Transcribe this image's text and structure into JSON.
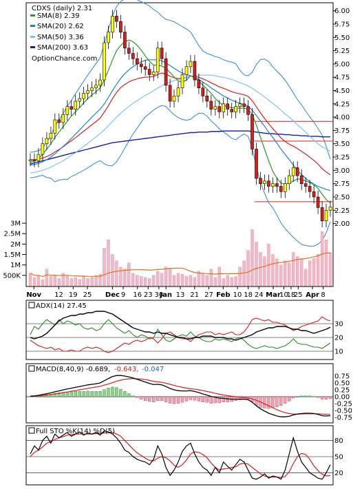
{
  "legend": {
    "ticker": "CDXS (daily) 2.31",
    "sma8": "SMA(8) 2.39",
    "sma20": "SMA(20) 2.62",
    "sma50": "SMA(50) 3.36",
    "sma200": "SMA(200) 3.63",
    "site": "OptionChance.com"
  },
  "colors": {
    "sma8": "#2a9a2a",
    "sma20": "#1f7fd0",
    "sma50": "#7fc4ea",
    "sma200": "#1a1aa0",
    "upper_band": "#3b8fd8",
    "ema_red": "#d81e1e",
    "candle_up": "#ffff00",
    "candle_down": "#d81e1e",
    "volume_bar": "#f2b8c6",
    "volume_ma": "#e07020"
  },
  "x_labels": [
    "Nov",
    "12",
    "19",
    "25",
    "Dec",
    "9",
    "16",
    "23",
    "30",
    "Jan",
    "13",
    "21",
    "27",
    "Feb",
    "10",
    "18",
    "24",
    "Mar",
    "10",
    "18",
    "25",
    "Apr",
    "8"
  ],
  "adx_panel": {
    "label": "ADX(14) 27.45",
    "ticks": [
      "30",
      "20",
      "10"
    ]
  },
  "macd_panel": {
    "label": "MACD(8,40,9) -0.689,",
    "signal": "-0.643,",
    "hist": "-0.047",
    "ticks": [
      "0.75",
      "0.50",
      "0.25",
      "0.00",
      "-0.25",
      "-0.50",
      "-0.75"
    ]
  },
  "sto_panel": {
    "label": "Full STO %K(14) %D(5)",
    "ticks": [
      "80",
      "50",
      "20"
    ]
  },
  "chart_data": {
    "type": "line",
    "title": "CDXS (daily) 2.31",
    "price_axis": {
      "ticks": [
        "6.00",
        "5.75",
        "5.50",
        "5.25",
        "5.00",
        "4.75",
        "4.50",
        "4.25",
        "4.00",
        "3.75",
        "3.50",
        "3.25",
        "3.00",
        "2.75",
        "2.50",
        "2.25",
        "2.00"
      ],
      "ylim": [
        1.8,
        6.1
      ]
    },
    "volume_axis": {
      "ticks": [
        "3M",
        "2.5M",
        "2M",
        "1.5M",
        "1M",
        "500K"
      ],
      "ylim": [
        0,
        3200000
      ]
    },
    "close": [
      3.2,
      3.18,
      3.3,
      3.5,
      3.6,
      3.7,
      3.95,
      3.9,
      4.05,
      4.2,
      4.15,
      4.3,
      4.35,
      4.45,
      4.5,
      4.55,
      4.6,
      4.7,
      5.4,
      5.6,
      5.9,
      5.8,
      5.6,
      5.3,
      5.2,
      5.1,
      5.0,
      4.95,
      4.9,
      4.8,
      4.85,
      5.3,
      5.1,
      4.6,
      4.3,
      4.4,
      4.55,
      4.8,
      4.95,
      5.05,
      4.7,
      4.55,
      4.4,
      4.3,
      4.15,
      4.2,
      4.1,
      4.25,
      4.15,
      4.1,
      4.2,
      4.25,
      4.2,
      4.05,
      3.4,
      2.85,
      2.75,
      2.8,
      2.7,
      2.75,
      2.7,
      2.6,
      2.75,
      2.9,
      3.05,
      2.9,
      2.75,
      2.7,
      2.6,
      2.5,
      2.3,
      2.05,
      2.25,
      2.31
    ],
    "sma8": [
      3.15,
      3.18,
      3.22,
      3.3,
      3.4,
      3.5,
      3.62,
      3.72,
      3.82,
      3.92,
      4.02,
      4.1,
      4.18,
      4.27,
      4.35,
      4.42,
      4.48,
      4.55,
      4.7,
      4.88,
      5.08,
      5.25,
      5.35,
      5.42,
      5.45,
      5.42,
      5.35,
      5.26,
      5.15,
      5.05,
      4.98,
      4.98,
      4.96,
      4.92,
      4.84,
      4.76,
      4.68,
      4.66,
      4.7,
      4.78,
      4.74,
      4.68,
      4.6,
      4.53,
      4.45,
      4.35,
      4.28,
      4.22,
      4.2,
      4.18,
      4.17,
      4.17,
      4.17,
      4.15,
      4.05,
      3.85,
      3.62,
      3.4,
      3.18,
      2.98,
      2.85,
      2.76,
      2.74,
      2.76,
      2.8,
      2.84,
      2.83,
      2.8,
      2.77,
      2.73,
      2.66,
      2.55,
      2.45,
      2.39
    ],
    "sma20": [
      3.1,
      3.11,
      3.13,
      3.16,
      3.2,
      3.25,
      3.31,
      3.38,
      3.45,
      3.52,
      3.6,
      3.68,
      3.76,
      3.84,
      3.92,
      4.0,
      4.08,
      4.15,
      4.25,
      4.37,
      4.5,
      4.62,
      4.73,
      4.82,
      4.89,
      4.95,
      5.0,
      5.04,
      5.07,
      5.08,
      5.08,
      5.08,
      5.06,
      5.02,
      4.97,
      4.92,
      4.87,
      4.83,
      4.8,
      4.78,
      4.75,
      4.71,
      4.66,
      4.61,
      4.55,
      4.5,
      4.45,
      4.4,
      4.36,
      4.32,
      4.29,
      4.26,
      4.24,
      4.21,
      4.13,
      4.03,
      3.93,
      3.83,
      3.72,
      3.62,
      3.51,
      3.4,
      3.3,
      3.2,
      3.1,
      3.0,
      2.92,
      2.85,
      2.79,
      2.74,
      2.7,
      2.67,
      2.64,
      2.62
    ],
    "sma50": [
      2.95,
      2.96,
      2.98,
      3.0,
      3.03,
      3.06,
      3.1,
      3.14,
      3.18,
      3.23,
      3.28,
      3.33,
      3.39,
      3.45,
      3.51,
      3.57,
      3.63,
      3.69,
      3.76,
      3.84,
      3.92,
      4.0,
      4.07,
      4.14,
      4.2,
      4.26,
      4.31,
      4.36,
      4.41,
      4.45,
      4.5,
      4.55,
      4.59,
      4.63,
      4.66,
      4.69,
      4.71,
      4.73,
      4.75,
      4.77,
      4.78,
      4.79,
      4.79,
      4.79,
      4.79,
      4.78,
      4.76,
      4.75,
      4.73,
      4.71,
      4.68,
      4.65,
      4.62,
      4.59,
      4.54,
      4.49,
      4.44,
      4.38,
      4.32,
      4.26,
      4.2,
      4.13,
      4.06,
      4.0,
      3.93,
      3.86,
      3.79,
      3.72,
      3.64,
      3.57,
      3.5,
      3.44,
      3.4,
      3.36
    ],
    "sma200": [
      3.12,
      3.14,
      3.16,
      3.18,
      3.2,
      3.22,
      3.24,
      3.26,
      3.28,
      3.3,
      3.32,
      3.34,
      3.36,
      3.38,
      3.4,
      3.42,
      3.44,
      3.46,
      3.48,
      3.5,
      3.52,
      3.53,
      3.54,
      3.55,
      3.56,
      3.57,
      3.58,
      3.59,
      3.6,
      3.61,
      3.62,
      3.63,
      3.64,
      3.65,
      3.66,
      3.67,
      3.68,
      3.69,
      3.7,
      3.71,
      3.71,
      3.72,
      3.72,
      3.72,
      3.73,
      3.73,
      3.73,
      3.74,
      3.74,
      3.74,
      3.74,
      3.74,
      3.74,
      3.74,
      3.73,
      3.72,
      3.71,
      3.7,
      3.69,
      3.69,
      3.68,
      3.68,
      3.67,
      3.67,
      3.66,
      3.66,
      3.65,
      3.65,
      3.64,
      3.64,
      3.64,
      3.63,
      3.63,
      3.63
    ],
    "volume": [
      600000,
      400000,
      500000,
      300000,
      800000,
      450000,
      500000,
      350000,
      600000,
      500000,
      350000,
      400000,
      300000,
      450000,
      350000,
      400000,
      500000,
      550000,
      1800000,
      2200000,
      1500000,
      1200000,
      900000,
      800000,
      1100000,
      600000,
      500000,
      450000,
      400000,
      350000,
      500000,
      700000,
      600000,
      900000,
      800000,
      500000,
      600000,
      550000,
      450000,
      500000,
      400000,
      700000,
      600000,
      500000,
      800000,
      400000,
      900000,
      350000,
      500000,
      400000,
      450000,
      900000,
      1200000,
      1700000,
      2700000,
      2100000,
      1600000,
      1400000,
      2000000,
      1500000,
      1300000,
      1000000,
      1200000,
      1100000,
      1600000,
      1400000,
      1300000,
      800000,
      1200000,
      1300000,
      1500000,
      2600000,
      2200000,
      1600000
    ],
    "adx": {
      "ticks": [
        30,
        20,
        10
      ],
      "ylim": [
        5,
        40
      ],
      "adx": [
        20,
        19,
        20,
        21,
        23,
        26,
        29,
        32,
        34,
        35,
        36,
        36,
        37,
        37,
        38,
        38,
        39,
        39,
        39,
        38,
        37,
        35,
        33,
        31,
        29,
        27,
        26,
        25,
        24,
        24,
        23,
        24,
        23,
        23,
        22,
        21,
        20,
        20,
        19,
        19,
        20,
        20,
        21,
        21,
        21,
        20,
        20,
        20,
        19,
        19,
        18,
        19,
        20,
        21,
        22,
        24,
        25,
        26,
        27,
        27,
        28,
        28,
        28,
        27,
        26,
        26,
        25,
        25,
        24,
        23,
        24,
        25,
        26,
        27.45
      ],
      "plus_di": [
        22,
        28,
        26,
        30,
        33,
        31,
        29,
        33,
        30,
        32,
        31,
        29,
        30,
        27,
        26,
        27,
        25,
        26,
        30,
        33,
        30,
        27,
        25,
        23,
        25,
        22,
        20,
        22,
        21,
        19,
        20,
        26,
        22,
        18,
        17,
        19,
        21,
        22,
        21,
        24,
        21,
        20,
        18,
        17,
        17,
        19,
        18,
        19,
        18,
        17,
        19,
        20,
        18,
        15,
        13,
        12,
        13,
        14,
        13,
        13,
        12,
        13,
        14,
        16,
        19,
        16,
        15,
        15,
        14,
        13,
        13,
        12,
        14,
        16
      ],
      "minus_di": [
        18,
        16,
        14,
        13,
        12,
        13,
        11,
        12,
        10,
        10,
        11,
        10,
        10,
        12,
        13,
        12,
        13,
        12,
        10,
        9,
        10,
        12,
        14,
        16,
        15,
        17,
        18,
        17,
        18,
        20,
        19,
        16,
        19,
        23,
        24,
        22,
        20,
        19,
        19,
        17,
        20,
        22,
        23,
        24,
        24,
        22,
        23,
        22,
        23,
        24,
        22,
        22,
        24,
        28,
        33,
        34,
        33,
        32,
        33,
        31,
        31,
        30,
        29,
        27,
        25,
        26,
        28,
        29,
        30,
        31,
        32,
        35,
        33,
        32
      ]
    },
    "macd": {
      "ticks": [
        0.75,
        0.5,
        0.25,
        0.0,
        -0.25,
        -0.5,
        -0.75
      ],
      "ylim": [
        -0.9,
        0.85
      ],
      "macd": [
        0.02,
        0.03,
        0.05,
        0.08,
        0.11,
        0.14,
        0.18,
        0.21,
        0.25,
        0.28,
        0.31,
        0.34,
        0.37,
        0.4,
        0.43,
        0.45,
        0.47,
        0.5,
        0.58,
        0.66,
        0.73,
        0.77,
        0.77,
        0.75,
        0.72,
        0.68,
        0.63,
        0.58,
        0.53,
        0.48,
        0.44,
        0.45,
        0.43,
        0.37,
        0.3,
        0.25,
        0.22,
        0.21,
        0.21,
        0.22,
        0.19,
        0.15,
        0.1,
        0.06,
        0.01,
        -0.02,
        -0.05,
        -0.06,
        -0.08,
        -0.09,
        -0.09,
        -0.09,
        -0.09,
        -0.11,
        -0.2,
        -0.33,
        -0.44,
        -0.52,
        -0.6,
        -0.65,
        -0.7,
        -0.73,
        -0.73,
        -0.71,
        -0.66,
        -0.63,
        -0.61,
        -0.6,
        -0.6,
        -0.61,
        -0.64,
        -0.69,
        -0.7,
        -0.689
      ],
      "signal": [
        0.01,
        0.02,
        0.03,
        0.04,
        0.06,
        0.08,
        0.1,
        0.12,
        0.15,
        0.17,
        0.2,
        0.22,
        0.25,
        0.28,
        0.3,
        0.33,
        0.35,
        0.38,
        0.42,
        0.46,
        0.51,
        0.56,
        0.6,
        0.63,
        0.65,
        0.66,
        0.65,
        0.64,
        0.62,
        0.59,
        0.56,
        0.54,
        0.52,
        0.49,
        0.45,
        0.41,
        0.37,
        0.34,
        0.31,
        0.29,
        0.27,
        0.25,
        0.22,
        0.19,
        0.16,
        0.12,
        0.09,
        0.06,
        0.04,
        0.02,
        0.0,
        -0.02,
        -0.03,
        -0.05,
        -0.08,
        -0.13,
        -0.19,
        -0.26,
        -0.33,
        -0.4,
        -0.47,
        -0.53,
        -0.58,
        -0.61,
        -0.63,
        -0.63,
        -0.63,
        -0.62,
        -0.62,
        -0.62,
        -0.62,
        -0.63,
        -0.64,
        -0.643
      ],
      "hist": [
        0.01,
        0.01,
        0.02,
        0.04,
        0.05,
        0.06,
        0.08,
        0.09,
        0.1,
        0.11,
        0.11,
        0.12,
        0.12,
        0.12,
        0.13,
        0.12,
        0.12,
        0.12,
        0.16,
        0.2,
        0.22,
        0.21,
        0.17,
        0.12,
        0.07,
        0.02,
        -0.02,
        -0.06,
        -0.09,
        -0.11,
        -0.12,
        -0.09,
        -0.09,
        -0.12,
        -0.15,
        -0.16,
        -0.15,
        -0.13,
        -0.1,
        -0.07,
        -0.08,
        -0.1,
        -0.12,
        -0.13,
        -0.15,
        -0.14,
        -0.14,
        -0.12,
        -0.12,
        -0.11,
        -0.09,
        -0.07,
        -0.06,
        -0.06,
        -0.12,
        -0.2,
        -0.25,
        -0.26,
        -0.27,
        -0.25,
        -0.23,
        -0.2,
        -0.15,
        -0.1,
        -0.03,
        0.0,
        0.02,
        0.02,
        0.02,
        0.01,
        -0.02,
        -0.06,
        -0.06,
        -0.047
      ]
    },
    "stochastic": {
      "ticks": [
        80,
        50,
        20
      ],
      "ylim": [
        0,
        100
      ],
      "k": [
        55,
        70,
        62,
        80,
        88,
        75,
        92,
        85,
        90,
        95,
        88,
        92,
        96,
        90,
        94,
        92,
        95,
        90,
        98,
        96,
        92,
        85,
        75,
        62,
        58,
        50,
        45,
        42,
        40,
        35,
        45,
        70,
        55,
        30,
        15,
        25,
        40,
        60,
        70,
        75,
        55,
        40,
        30,
        25,
        15,
        30,
        20,
        40,
        32,
        25,
        35,
        45,
        40,
        25,
        10,
        8,
        12,
        18,
        10,
        14,
        12,
        8,
        25,
        55,
        85,
        60,
        40,
        30,
        20,
        15,
        10,
        8,
        20,
        35
      ],
      "d": [
        50,
        58,
        62,
        68,
        75,
        78,
        82,
        85,
        87,
        90,
        91,
        92,
        92,
        92,
        92,
        92,
        93,
        93,
        94,
        95,
        95,
        92,
        88,
        80,
        72,
        64,
        57,
        52,
        47,
        43,
        42,
        47,
        50,
        48,
        42,
        34,
        30,
        35,
        44,
        55,
        59,
        58,
        54,
        48,
        38,
        30,
        25,
        27,
        28,
        30,
        31,
        36,
        38,
        36,
        30,
        24,
        18,
        14,
        12,
        12,
        12,
        11,
        13,
        22,
        37,
        50,
        56,
        54,
        45,
        33,
        24,
        17,
        14,
        15
      ]
    }
  }
}
